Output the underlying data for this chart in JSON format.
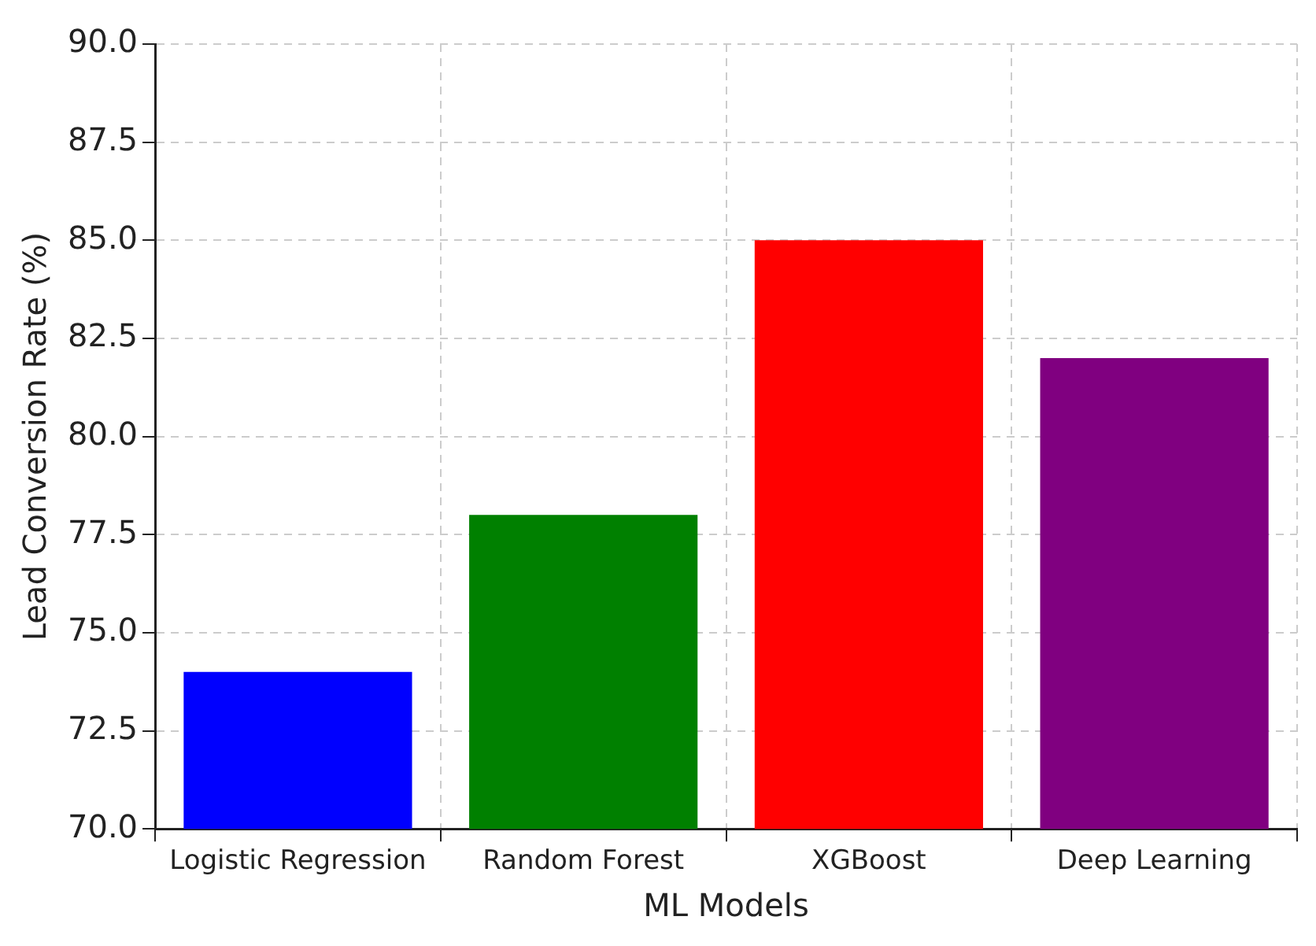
{
  "chart_data": {
    "type": "bar",
    "xlabel": "ML Models",
    "ylabel": "Lead Conversion Rate (%)",
    "categories": [
      "Logistic Regression",
      "Random Forest",
      "XGBoost",
      "Deep Learning"
    ],
    "values": [
      74,
      78,
      85,
      82
    ],
    "colors": [
      "#0000ff",
      "#008000",
      "#ff0000",
      "#800080"
    ],
    "ylim": [
      70,
      90
    ],
    "yticks": [
      {
        "value": 70,
        "label": "70.0"
      },
      {
        "value": 72.5,
        "label": "72.5"
      },
      {
        "value": 75,
        "label": "75.0"
      },
      {
        "value": 77.5,
        "label": "77.5"
      },
      {
        "value": 80,
        "label": "80.0"
      },
      {
        "value": 82.5,
        "label": "82.5"
      },
      {
        "value": 85,
        "label": "85.0"
      },
      {
        "value": 87.5,
        "label": "87.5"
      },
      {
        "value": 90,
        "label": "90.0"
      }
    ],
    "grid": true
  }
}
